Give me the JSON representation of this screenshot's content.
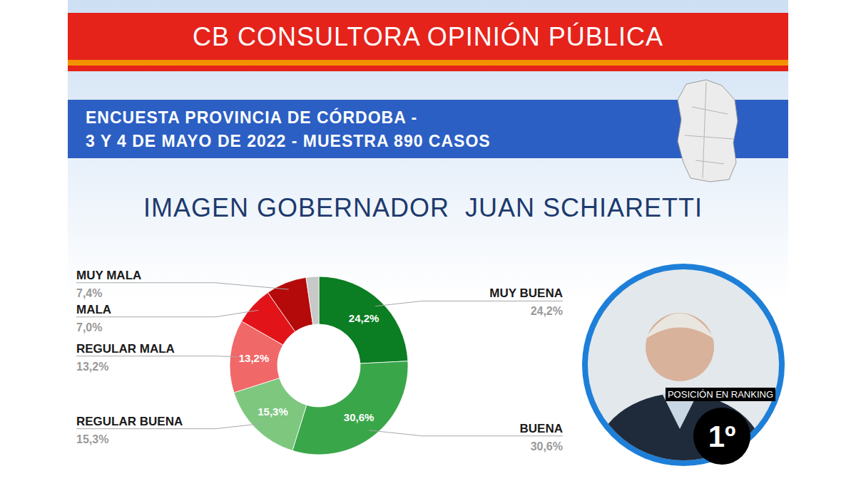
{
  "chart_data": {
    "type": "donut",
    "source": "CB CONSULTORA OPINIÓN PÚBLICA",
    "subtitle": [
      "ENCUESTA PROVINCIA DE CÓRDOBA -",
      "3 Y 4 DE MAYO DE 2022 - MUESTRA 890 CASOS"
    ],
    "title": "IMAGEN GOBERNADOR  JUAN SCHIARETTI",
    "categories": [
      "MUY BUENA",
      "BUENA",
      "REGULAR BUENA",
      "REGULAR MALA",
      "MALA",
      "MUY MALA",
      null
    ],
    "values": [
      24.2,
      30.6,
      15.3,
      13.2,
      7.0,
      7.4,
      2.3
    ],
    "value_labels": [
      "24,2%",
      "30,6%",
      "15,3%",
      "13,2%",
      "7,0%",
      "7,4%",
      null
    ],
    "colors": [
      "#0b7d22",
      "#3aa64a",
      "#7dc77f",
      "#f06868",
      "#e2141a",
      "#b40a0a",
      "#c8c8c8"
    ],
    "data_labels": true,
    "annotations": [
      "POSICIÓN EN RANKING",
      "1º"
    ]
  }
}
